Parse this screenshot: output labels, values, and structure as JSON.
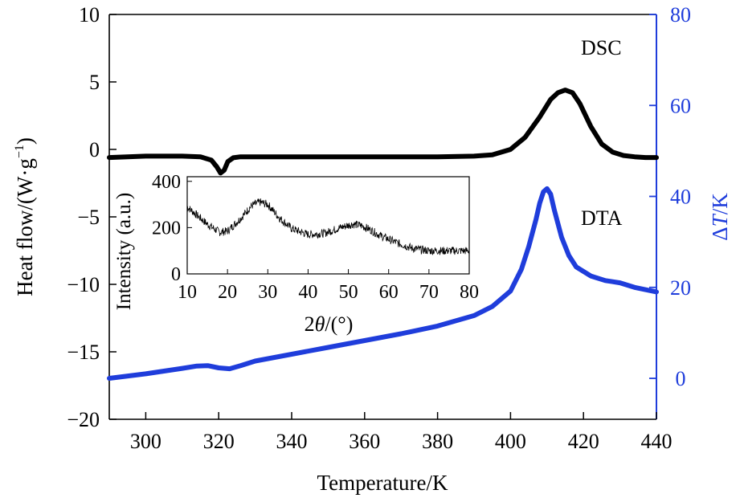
{
  "chart_data": {
    "type": "line",
    "title": "",
    "xlabel": "Temperature/K",
    "xlim": [
      290,
      440
    ],
    "x_ticks": [
      300,
      320,
      340,
      360,
      380,
      400,
      420,
      440
    ],
    "x_tick_labels": [
      "300",
      "320",
      "340",
      "360",
      "380",
      "400",
      "420",
      "440"
    ],
    "y_left": {
      "label_main": "Heat flow/(W·g",
      "label_sup": "−1",
      "label_close": ")",
      "ylim": [
        -20,
        10
      ],
      "ticks": [
        10,
        5,
        0,
        -5,
        -10,
        -15,
        -20
      ],
      "tick_labels": [
        "10",
        "5",
        "0",
        "−5",
        "−10",
        "−15",
        "−20"
      ]
    },
    "y_right": {
      "label_delta": "Δ",
      "label_T": "T",
      "label_unit": "/K",
      "ylim": [
        -9,
        80
      ],
      "ticks": [
        80,
        60,
        40,
        20,
        0
      ],
      "tick_labels": [
        "80",
        "60",
        "40",
        "20",
        "0"
      ],
      "color": "#1f3ddb"
    },
    "series": [
      {
        "name": "DSC",
        "label": "DSC",
        "axis": "left",
        "color": "#000000",
        "x": [
          290,
          300,
          310,
          315,
          318,
          319.5,
          320.5,
          321.5,
          322.5,
          324,
          326,
          340,
          360,
          380,
          390,
          395,
          400,
          404,
          408,
          411,
          413,
          415,
          417,
          419,
          422,
          425,
          428,
          431,
          434,
          437,
          440
        ],
        "y": [
          -0.6,
          -0.5,
          -0.5,
          -0.55,
          -0.8,
          -1.3,
          -1.75,
          -1.55,
          -0.9,
          -0.62,
          -0.55,
          -0.55,
          -0.55,
          -0.55,
          -0.5,
          -0.4,
          0.0,
          0.9,
          2.4,
          3.7,
          4.2,
          4.4,
          4.2,
          3.4,
          1.7,
          0.4,
          -0.2,
          -0.45,
          -0.55,
          -0.6,
          -0.6
        ]
      },
      {
        "name": "DTA",
        "label": "DTA",
        "axis": "right",
        "color": "#1f3ddb",
        "x": [
          290,
          300,
          310,
          314,
          317,
          320,
          323,
          326,
          330,
          340,
          350,
          360,
          370,
          380,
          390,
          395,
          400,
          403,
          405,
          407,
          408,
          409,
          410,
          411,
          412,
          414,
          416,
          418,
          422,
          426,
          430,
          434,
          440
        ],
        "y": [
          0.0,
          1.0,
          2.2,
          2.7,
          2.8,
          2.3,
          2.1,
          2.8,
          3.8,
          5.3,
          6.8,
          8.3,
          9.8,
          11.5,
          13.8,
          15.8,
          19.2,
          24,
          29,
          35,
          38.5,
          41,
          41.7,
          40.5,
          37,
          31,
          27,
          24.5,
          22.5,
          21.5,
          21,
          20,
          19
        ]
      }
    ],
    "inset": {
      "type": "line",
      "xlabel_prefix": "2",
      "xlabel_theta": "θ",
      "xlabel_suffix": "/(°)",
      "ylabel": "Intensity (a.u.)",
      "xlim": [
        10,
        80
      ],
      "ylim": [
        0,
        420
      ],
      "x_ticks": [
        10,
        20,
        30,
        40,
        50,
        60,
        70,
        80
      ],
      "x_tick_labels": [
        "10",
        "20",
        "30",
        "40",
        "50",
        "60",
        "70",
        "80"
      ],
      "y_ticks": [
        0,
        200,
        400
      ],
      "y_tick_labels": [
        "0",
        "200",
        "400"
      ],
      "series": [
        {
          "name": "XRD",
          "color": "#000000",
          "x": [
            10,
            12,
            15,
            18,
            20,
            23,
            26,
            28,
            30,
            33,
            36,
            40,
            44,
            48,
            51,
            53,
            55,
            58,
            62,
            66,
            70,
            75,
            80
          ],
          "y": [
            290,
            260,
            215,
            180,
            185,
            235,
            295,
            310,
            300,
            240,
            195,
            170,
            175,
            200,
            215,
            210,
            195,
            165,
            135,
            110,
            100,
            100,
            100
          ]
        }
      ]
    }
  }
}
